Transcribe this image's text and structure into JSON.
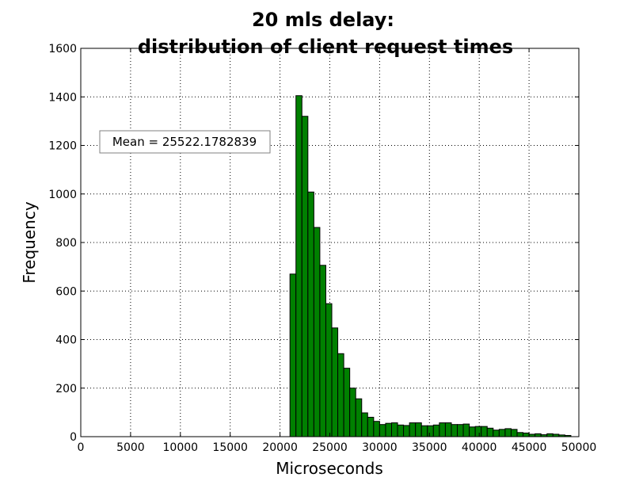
{
  "chart_data": {
    "type": "bar",
    "title_lines": [
      "20 mls delay:",
      "distribution of client request times"
    ],
    "xlabel": "Microseconds",
    "ylabel": "Frequency",
    "xlim": [
      0,
      50000
    ],
    "ylim": [
      0,
      1600
    ],
    "xticks": [
      0,
      5000,
      10000,
      15000,
      20000,
      25000,
      30000,
      35000,
      40000,
      45000,
      50000
    ],
    "yticks": [
      0,
      200,
      400,
      600,
      800,
      1000,
      1200,
      1400,
      1600
    ],
    "xtick_labels": [
      "0",
      "5000",
      "10000",
      "15000",
      "20000",
      "25000",
      "30000",
      "35000",
      "40000",
      "45000",
      "50000"
    ],
    "ytick_labels": [
      "0",
      "200",
      "400",
      "600",
      "800",
      "1000",
      "1200",
      "1400",
      "1600"
    ],
    "grid": true,
    "bar_color": "#008000",
    "bin_start": 21000,
    "bin_width": 600,
    "values": [
      670,
      1405,
      1320,
      1008,
      862,
      706,
      548,
      448,
      342,
      282,
      200,
      156,
      98,
      80,
      63,
      50,
      55,
      57,
      48,
      46,
      57,
      57,
      45,
      45,
      48,
      57,
      57,
      50,
      50,
      52,
      40,
      42,
      42,
      35,
      27,
      30,
      33,
      30,
      17,
      15,
      10,
      12,
      8,
      12,
      10,
      7,
      5
    ],
    "annotation": "Mean = 25522.1782839"
  }
}
